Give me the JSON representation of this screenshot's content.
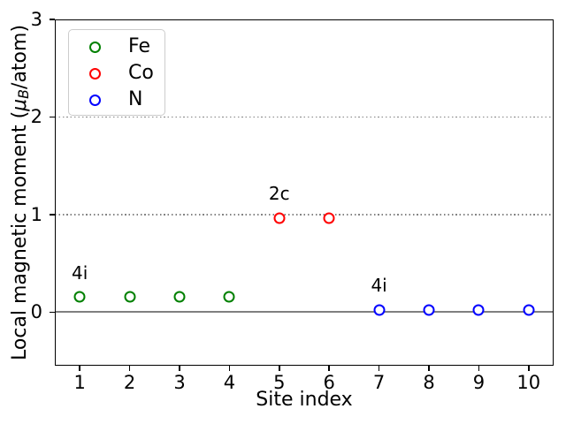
{
  "figure": {
    "background": "#ffffff",
    "spine_color": "#000000"
  },
  "chart_data": {
    "type": "scatter",
    "title": "",
    "xlabel": "Site index",
    "ylabel": {
      "prefix": "Local magnetic moment (",
      "mu": "μ",
      "subscript": "B",
      "suffix": "/atom)"
    },
    "xlim": [
      0.5,
      10.5
    ],
    "ylim": [
      -0.55,
      3.0
    ],
    "xticks": [
      "1",
      "2",
      "3",
      "4",
      "5",
      "6",
      "7",
      "8",
      "9",
      "10"
    ],
    "xtick_values": [
      1,
      2,
      3,
      4,
      5,
      6,
      7,
      8,
      9,
      10
    ],
    "yticks": [
      "0",
      "1",
      "2",
      "3"
    ],
    "ytick_values": [
      0,
      1,
      2,
      3
    ],
    "grid": {
      "dotted_y": [
        1,
        2
      ],
      "solid_y": [
        0
      ],
      "dotted_color": "#848484",
      "solid_color": "#808080"
    },
    "series": [
      {
        "name": "Fe",
        "color": "#008000",
        "x": [
          1,
          2,
          3,
          4
        ],
        "y": [
          0.16,
          0.16,
          0.16,
          0.16
        ]
      },
      {
        "name": "Co",
        "color": "#ff0000",
        "x": [
          5,
          6
        ],
        "y": [
          0.96,
          0.96
        ]
      },
      {
        "name": "N",
        "color": "#0000ff",
        "x": [
          7,
          8,
          9,
          10
        ],
        "y": [
          0.02,
          0.02,
          0.02,
          0.02
        ]
      }
    ],
    "annotations": [
      {
        "text": "4i",
        "x": 1,
        "y": 0.4
      },
      {
        "text": "2c",
        "x": 5,
        "y": 1.22
      },
      {
        "text": "4i",
        "x": 7,
        "y": 0.27
      }
    ],
    "legend": {
      "position": "top-left",
      "items": [
        {
          "label": "Fe",
          "color": "#008000"
        },
        {
          "label": "Co",
          "color": "#ff0000"
        },
        {
          "label": "N",
          "color": "#0000ff"
        }
      ]
    }
  }
}
